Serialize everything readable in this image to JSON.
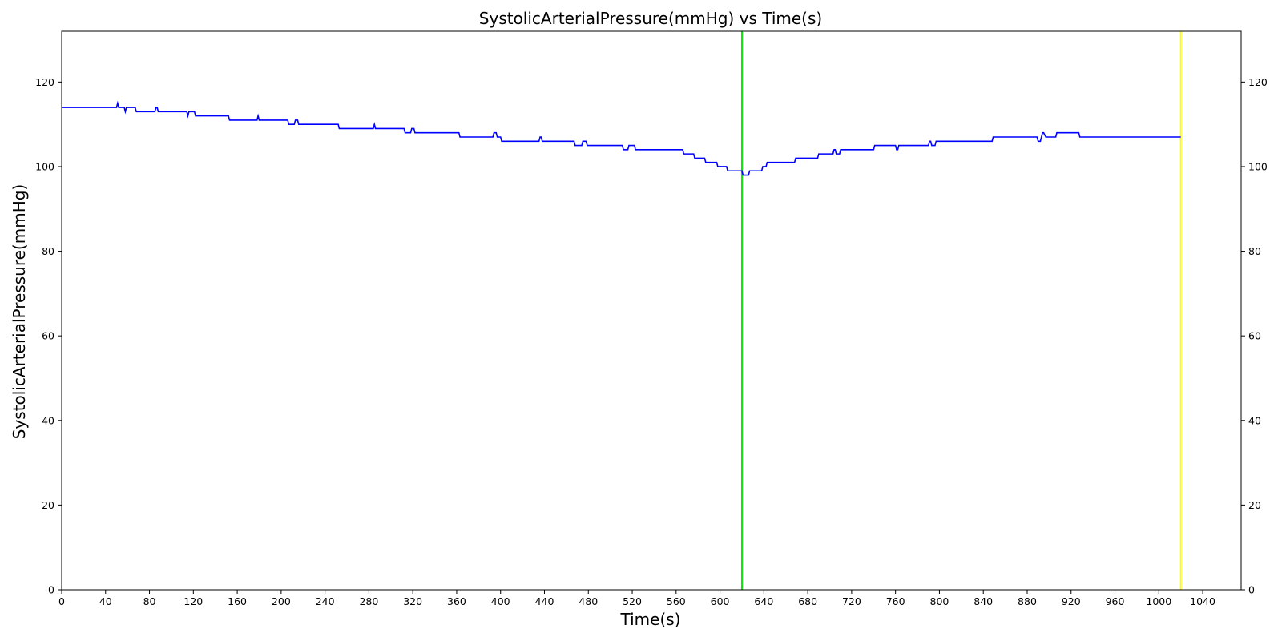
{
  "chart_data": {
    "type": "line",
    "title": "SystolicArterialPressure(mmHg) vs Time(s)",
    "xlabel": "Time(s)",
    "ylabel": "SystolicArterialPressure(mmHg)",
    "xlim": [
      0,
      1075
    ],
    "ylim": [
      0,
      132
    ],
    "x_ticks": [
      0,
      40,
      80,
      120,
      160,
      200,
      240,
      280,
      320,
      360,
      400,
      440,
      480,
      520,
      560,
      600,
      640,
      680,
      720,
      760,
      800,
      840,
      880,
      920,
      960,
      1000,
      1040
    ],
    "y_ticks": [
      0,
      20,
      40,
      60,
      80,
      100,
      120
    ],
    "right_y_axis": true,
    "grid": false,
    "series": [
      {
        "color": "#0000ff",
        "x": [
          0,
          50,
          51,
          52,
          57,
          58,
          59,
          67,
          68,
          85,
          86,
          87,
          88,
          114,
          115,
          116,
          121,
          122,
          152,
          153,
          178,
          179,
          180,
          181,
          206,
          207,
          212,
          213,
          215,
          216,
          252,
          253,
          284,
          285,
          286,
          312,
          313,
          318,
          319,
          321,
          322,
          362,
          363,
          393,
          394,
          396,
          397,
          400,
          401,
          435,
          436,
          437,
          438,
          467,
          468,
          474,
          475,
          478,
          479,
          511,
          512,
          516,
          517,
          522,
          523,
          566,
          567,
          576,
          577,
          586,
          587,
          597,
          598,
          606,
          607,
          615,
          616,
          620,
          621,
          622,
          626,
          627,
          638,
          639,
          642,
          643,
          668,
          669,
          689,
          690,
          703,
          704,
          705,
          706,
          709,
          710,
          740,
          741,
          760,
          761,
          762,
          763,
          790,
          791,
          792,
          793,
          796,
          797,
          848,
          849,
          889,
          890,
          892,
          893,
          894,
          895,
          897,
          898,
          906,
          907,
          910,
          911,
          927,
          928,
          1020
        ],
        "values": [
          114,
          114,
          115,
          114,
          114,
          113,
          114,
          114,
          113,
          113,
          114,
          114,
          113,
          113,
          112,
          113,
          113,
          112,
          112,
          111,
          111,
          112,
          111,
          111,
          111,
          110,
          110,
          111,
          111,
          110,
          110,
          109,
          109,
          110,
          109,
          109,
          108,
          108,
          109,
          109,
          108,
          108,
          107,
          107,
          108,
          108,
          107,
          107,
          106,
          106,
          107,
          107,
          106,
          106,
          105,
          105,
          106,
          106,
          105,
          105,
          104,
          104,
          105,
          105,
          104,
          104,
          103,
          103,
          102,
          102,
          101,
          101,
          100,
          100,
          99,
          99,
          99,
          99,
          98,
          98,
          98,
          99,
          99,
          100,
          100,
          101,
          101,
          102,
          102,
          103,
          103,
          104,
          104,
          103,
          103,
          104,
          104,
          105,
          105,
          104,
          104,
          105,
          105,
          106,
          106,
          105,
          105,
          106,
          106,
          107,
          107,
          106,
          106,
          107,
          108,
          108,
          107,
          107,
          107,
          108,
          108,
          108,
          108,
          107,
          107
        ]
      }
    ],
    "vertical_lines": [
      {
        "x": 620,
        "color": "#00ee00"
      },
      {
        "x": 1020,
        "color": "#ffff00"
      }
    ]
  }
}
